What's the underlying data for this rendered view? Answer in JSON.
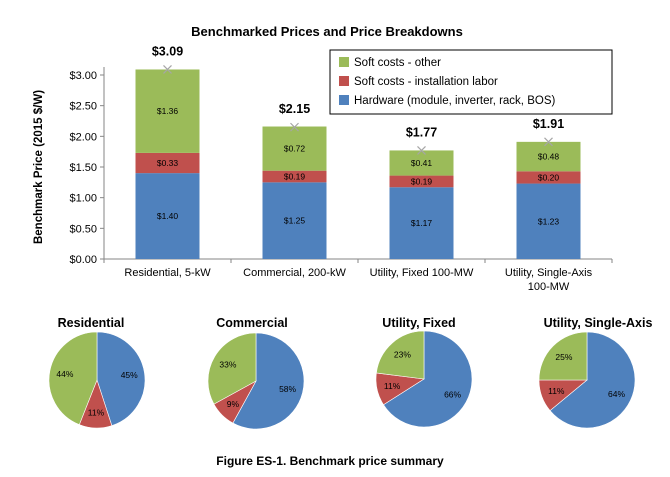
{
  "caption": "Figure ES-1. Benchmark price summary",
  "colors": {
    "hardware": "#4f81bd",
    "labor": "#c0504d",
    "soft_other": "#9bbb59",
    "axis": "#868686",
    "marker": "#a6a6a6"
  },
  "chart_data": [
    {
      "type": "bar",
      "stacked": true,
      "title": "Benchmarked Prices and Price Breakdowns",
      "xlabel": "",
      "ylabel": "Benchmark Price (2015 $/W)",
      "ylim": [
        0,
        3.0
      ],
      "yticks": [
        "$0.00",
        "$0.50",
        "$1.00",
        "$1.50",
        "$2.00",
        "$2.50",
        "$3.00"
      ],
      "legend_position": "top-right",
      "categories": [
        [
          "Residential, 5-kW"
        ],
        [
          "Commercial, 200-kW"
        ],
        [
          "Utility, Fixed 100-MW"
        ],
        [
          "Utility, Single-Axis",
          "100-MW"
        ]
      ],
      "series": [
        {
          "name": "Hardware (module, inverter, rack, BOS)",
          "color_key": "hardware",
          "values": [
            1.4,
            1.25,
            1.17,
            1.23
          ],
          "labels": [
            "$1.40",
            "$1.25",
            "$1.17",
            "$1.23"
          ]
        },
        {
          "name": "Soft costs - installation labor",
          "color_key": "labor",
          "values": [
            0.33,
            0.19,
            0.19,
            0.2
          ],
          "labels": [
            "$0.33",
            "$0.19",
            "$0.19",
            "$0.20"
          ]
        },
        {
          "name": "Soft costs - other",
          "color_key": "soft_other",
          "values": [
            1.36,
            0.72,
            0.41,
            0.48
          ],
          "labels": [
            "$1.36",
            "$0.72",
            "$0.41",
            "$0.48"
          ]
        }
      ],
      "totals": [
        3.09,
        2.15,
        1.77,
        1.91
      ],
      "total_labels": [
        "$3.09",
        "$2.15",
        "$1.77",
        "$1.91"
      ],
      "legend_order": [
        "Soft costs - other",
        "Soft costs - installation labor",
        "Hardware (module, inverter, rack, BOS)"
      ]
    },
    {
      "type": "pie",
      "pies": [
        {
          "title": "Residential",
          "slices": [
            {
              "name": "Hardware",
              "color_key": "hardware",
              "value": 45,
              "label": "45%"
            },
            {
              "name": "Labor",
              "color_key": "labor",
              "value": 11,
              "label": "11%"
            },
            {
              "name": "Soft costs - other",
              "color_key": "soft_other",
              "value": 44,
              "label": "44%"
            }
          ]
        },
        {
          "title": "Commercial",
          "slices": [
            {
              "name": "Hardware",
              "color_key": "hardware",
              "value": 58,
              "label": "58%"
            },
            {
              "name": "Labor",
              "color_key": "labor",
              "value": 9,
              "label": "9%"
            },
            {
              "name": "Soft costs - other",
              "color_key": "soft_other",
              "value": 33,
              "label": "33%"
            }
          ]
        },
        {
          "title": "Utility, Fixed",
          "slices": [
            {
              "name": "Hardware",
              "color_key": "hardware",
              "value": 66,
              "label": "66%"
            },
            {
              "name": "Labor",
              "color_key": "labor",
              "value": 11,
              "label": "11%"
            },
            {
              "name": "Soft costs - other",
              "color_key": "soft_other",
              "value": 23,
              "label": "23%"
            }
          ]
        },
        {
          "title": "Utility, Single-Axis",
          "slices": [
            {
              "name": "Hardware",
              "color_key": "hardware",
              "value": 64,
              "label": "64%"
            },
            {
              "name": "Labor",
              "color_key": "labor",
              "value": 11,
              "label": "11%"
            },
            {
              "name": "Soft costs - other",
              "color_key": "soft_other",
              "value": 25,
              "label": "25%"
            }
          ]
        }
      ]
    }
  ]
}
